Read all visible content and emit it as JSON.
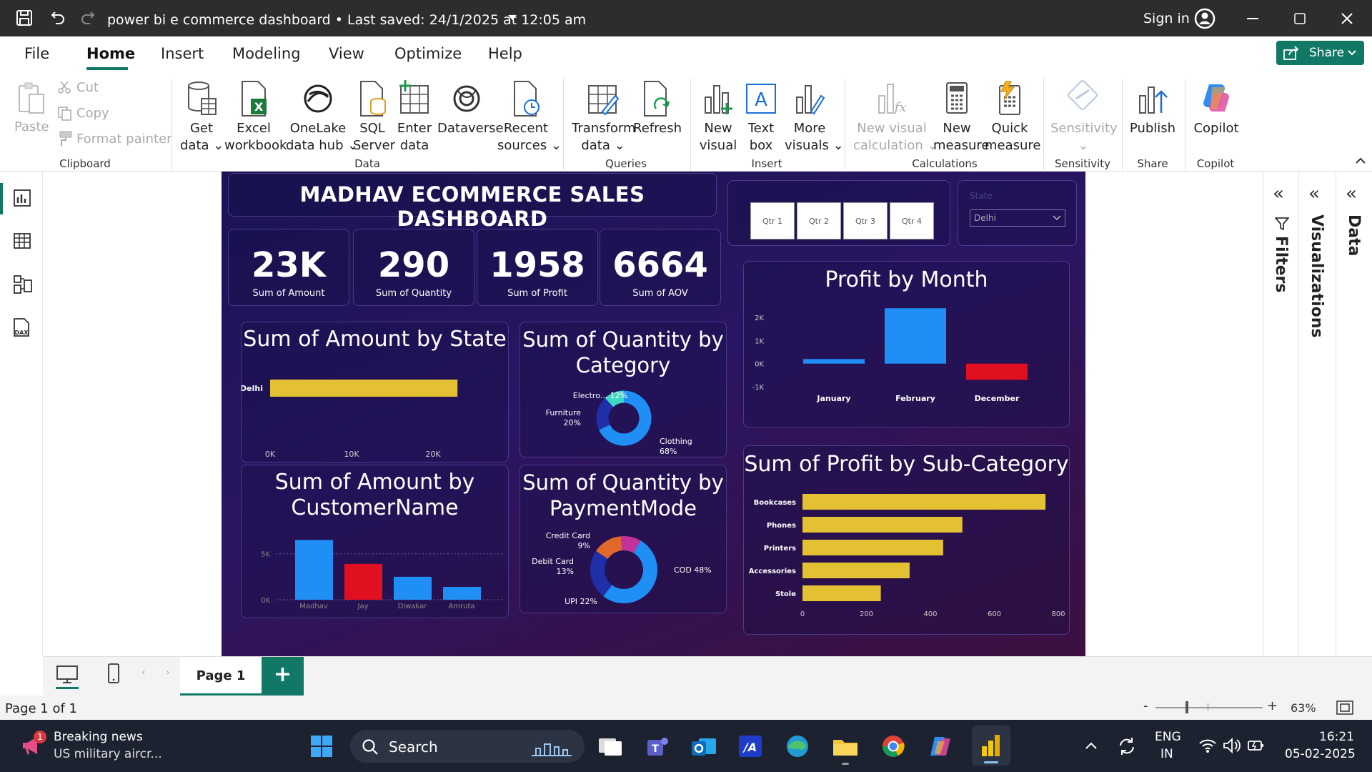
{
  "titlebar": {
    "title": "power bi e commerce dashboard • Last saved: 24/1/2025 at 12:05 am",
    "sign_in": "Sign in"
  },
  "menu": {
    "items": [
      "File",
      "Home",
      "Insert",
      "Modeling",
      "View",
      "Optimize",
      "Help"
    ],
    "share": "Share"
  },
  "ribbon": {
    "clipboard": {
      "paste": "Paste",
      "cut": "Cut",
      "copy": "Copy",
      "format_painter": "Format painter",
      "group": "Clipboard"
    },
    "data": {
      "get_data": [
        "Get",
        "data"
      ],
      "excel": [
        "Excel",
        "workbook"
      ],
      "onelake": [
        "OneLake",
        "data hub"
      ],
      "sql": [
        "SQL",
        "Server"
      ],
      "enter": [
        "Enter",
        "data"
      ],
      "dataverse": [
        "Dataverse",
        ""
      ],
      "recent": [
        "Recent",
        "sources"
      ],
      "group": "Data"
    },
    "queries": {
      "transform": [
        "Transform",
        "data"
      ],
      "refresh": [
        "Refresh",
        ""
      ],
      "group": "Queries"
    },
    "insert": {
      "new_visual": [
        "New",
        "visual"
      ],
      "text_box": [
        "Text",
        "box"
      ],
      "more_visuals": [
        "More",
        "visuals"
      ],
      "group": "Insert"
    },
    "calculations": {
      "new_visual_calc": [
        "New visual",
        "calculation"
      ],
      "new_measure": [
        "New",
        "measure"
      ],
      "quick_measure": [
        "Quick",
        "measure"
      ],
      "group": "Calculations"
    },
    "sensitivity": {
      "label": "Sensitivity",
      "group": "Sensitivity"
    },
    "share": {
      "publish": "Publish",
      "group": "Share"
    },
    "copilot": {
      "label": "Copilot",
      "group": "Copilot"
    }
  },
  "dashboard": {
    "title": "MADHAV ECOMMERCE SALES DASHBOARD",
    "kpis": [
      {
        "value": "23K",
        "label": "Sum of Amount"
      },
      {
        "value": "290",
        "label": "Sum of Quantity"
      },
      {
        "value": "1958",
        "label": "Sum of Profit"
      },
      {
        "value": "6664",
        "label": "Sum of AOV"
      }
    ],
    "quarters": [
      "Qtr 1",
      "Qtr 2",
      "Qtr 3",
      "Qtr 4"
    ],
    "state_slicer": {
      "label": "State",
      "value": "Delhi"
    },
    "visual_titles": {
      "amount_by_state": "Sum of Amount by State",
      "qty_by_category": "Sum of Quantity by Category",
      "amount_by_customer": "Sum of Amount by CustomerName",
      "qty_by_payment": "Sum of Quantity by PaymentMode",
      "profit_by_month": "Profit by Month",
      "profit_by_subcat": "Sum of Profit by Sub-Category"
    }
  },
  "chart_data": [
    {
      "type": "bar",
      "orientation": "horizontal",
      "title": "Sum of Amount by State",
      "categories": [
        "Delhi"
      ],
      "values": [
        23000
      ],
      "xlim": [
        0,
        25000
      ],
      "ticks": [
        "0K",
        "10K",
        "20K"
      ],
      "color": "#e3c133"
    },
    {
      "type": "pie",
      "donut": true,
      "title": "Sum of Quantity by Category",
      "categories": [
        "Clothing",
        "Furniture",
        "Electro..."
      ],
      "values": [
        68,
        20,
        12
      ],
      "labels": [
        "Clothing\n68%",
        "Furniture\n20%",
        "Electro... 12%"
      ],
      "colors": [
        "#1f8ff5",
        "#1e2fa8",
        "#3fd8c7"
      ]
    },
    {
      "type": "bar",
      "title": "Sum of Amount by CustomerName",
      "categories": [
        "Madhav",
        "Jay",
        "Diwakar",
        "Amruta"
      ],
      "values": [
        6500,
        3900,
        2500,
        1400
      ],
      "ylim": [
        0,
        7000
      ],
      "ticks": [
        "0K",
        "5K"
      ],
      "colors": [
        "#1f8ff5",
        "#e01020",
        "#1f8ff5",
        "#1f8ff5"
      ]
    },
    {
      "type": "pie",
      "donut": true,
      "title": "Sum of Quantity by PaymentMode",
      "categories": [
        "COD",
        "UPI",
        "Debit Card",
        "Credit Card"
      ],
      "values": [
        48,
        22,
        13,
        9
      ],
      "labels": [
        "COD 48%",
        "UPI 22%",
        "Debit Card\n13%",
        "Credit Card\n9%"
      ],
      "colors": [
        "#1f8ff5",
        "#1e2fa8",
        "#e06a2a",
        "#c2339a"
      ]
    },
    {
      "type": "bar",
      "title": "Profit by Month",
      "categories": [
        "January",
        "February",
        "December"
      ],
      "values": [
        200,
        2400,
        -700
      ],
      "ylim": [
        -1000,
        2500
      ],
      "ticks": [
        "-1K",
        "0K",
        "1K",
        "2K"
      ],
      "colors": [
        "#1f8ff5",
        "#1f8ff5",
        "#e01020"
      ]
    },
    {
      "type": "bar",
      "orientation": "horizontal",
      "title": "Sum of Profit by Sub-Category",
      "categories": [
        "Bookcases",
        "Phones",
        "Printers",
        "Accessories",
        "Stole"
      ],
      "values": [
        760,
        500,
        440,
        335,
        245
      ],
      "xlim": [
        0,
        800
      ],
      "ticks": [
        "0",
        "200",
        "400",
        "600",
        "800"
      ],
      "color": "#e3c133"
    }
  ],
  "panes": {
    "filters": "Filters",
    "visualizations": "Visualizations",
    "data": "Data"
  },
  "pages": {
    "tab": "Page 1",
    "status": "Page 1 of 1",
    "zoom": "63%"
  },
  "taskbar": {
    "news_title": "Breaking news",
    "news_sub": "US military aircr...",
    "news_badge": "1",
    "search": "Search",
    "lang1": "ENG",
    "lang2": "IN",
    "time": "16:21",
    "date": "05-02-2025"
  }
}
